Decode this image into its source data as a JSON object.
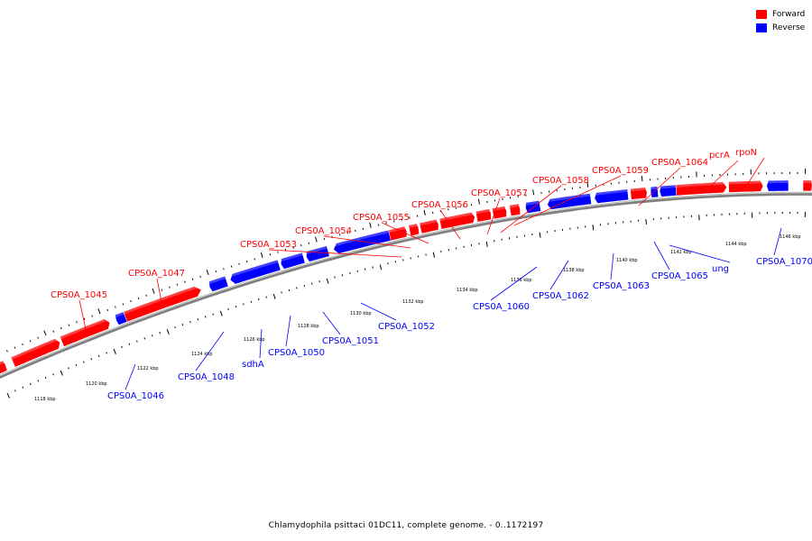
{
  "legend": {
    "items": [
      {
        "label": "Forward",
        "color": "#ff0000"
      },
      {
        "label": "Reverse",
        "color": "#0000ff"
      }
    ]
  },
  "caption": "Chlamydophila psittaci 01DC11, complete genome. - 0..1172197",
  "colors": {
    "forward": "#ff0000",
    "reverse": "#0000ff",
    "backbone": "#808080"
  },
  "tick_labels": [
    "1118 kbp",
    "1120 kbp",
    "1122 kbp",
    "1124 kbp",
    "1126 kbp",
    "1128 kbp",
    "1130 kbp",
    "1132 kbp",
    "1134 kbp",
    "1136 kbp",
    "1138 kbp",
    "1140 kbp",
    "1142 kbp",
    "1144 kbp",
    "1146 kbp"
  ],
  "forward_labels": [
    "CPS0A_1045",
    "CPS0A_1047",
    "CPS0A_1053",
    "CPS0A_1054",
    "CPS0A_1055",
    "CPS0A_1056",
    "CPS0A_1057",
    "CPS0A_1058",
    "CPS0A_1059",
    "CPS0A_1064",
    "pcrA",
    "rpoN"
  ],
  "reverse_labels": [
    "CPS0A_1046",
    "CPS0A_1048",
    "sdhA",
    "CPS0A_1050",
    "CPS0A_1051",
    "CPS0A_1052",
    "CPS0A_1060",
    "CPS0A_1062",
    "CPS0A_1063",
    "CPS0A_1065",
    "ung",
    "CPS0A_1070"
  ]
}
